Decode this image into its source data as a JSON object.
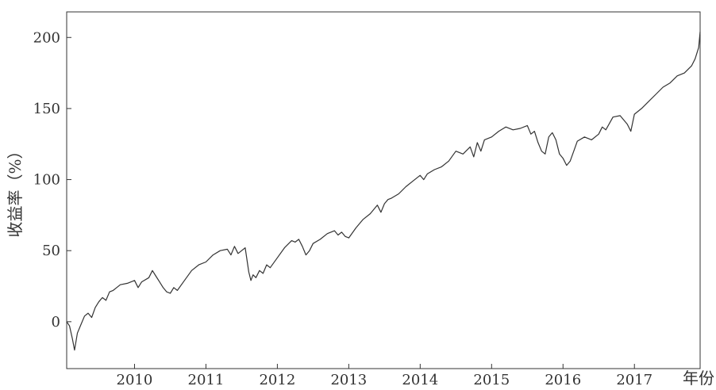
{
  "chart_data": {
    "type": "line",
    "title": "",
    "xlabel": "年份",
    "ylabel": "收益率（%）",
    "x_ticks": [
      "2010",
      "2011",
      "2012",
      "2013",
      "2014",
      "2015",
      "2016",
      "2017"
    ],
    "y_ticks": [
      "0",
      "50",
      "100",
      "150",
      "200"
    ],
    "xlim": [
      2009.05,
      2017.92
    ],
    "ylim": [
      -33,
      218
    ],
    "grid": false,
    "legend": "none",
    "series": [
      {
        "color": "#333333",
        "x": [
          2009.05,
          2009.09,
          2009.13,
          2009.16,
          2009.2,
          2009.25,
          2009.3,
          2009.35,
          2009.4,
          2009.45,
          2009.5,
          2009.55,
          2009.6,
          2009.65,
          2009.7,
          2009.75,
          2009.8,
          2009.9,
          2010.0,
          2010.05,
          2010.1,
          2010.2,
          2010.25,
          2010.3,
          2010.35,
          2010.4,
          2010.45,
          2010.5,
          2010.55,
          2010.6,
          2010.7,
          2010.8,
          2010.9,
          2011.0,
          2011.1,
          2011.2,
          2011.3,
          2011.35,
          2011.4,
          2011.45,
          2011.5,
          2011.55,
          2011.6,
          2011.63,
          2011.66,
          2011.7,
          2011.75,
          2011.8,
          2011.85,
          2011.9,
          2012.0,
          2012.1,
          2012.2,
          2012.25,
          2012.3,
          2012.35,
          2012.4,
          2012.45,
          2012.5,
          2012.6,
          2012.7,
          2012.8,
          2012.85,
          2012.9,
          2012.95,
          2013.0,
          2013.1,
          2013.2,
          2013.3,
          2013.4,
          2013.45,
          2013.5,
          2013.55,
          2013.6,
          2013.7,
          2013.8,
          2013.9,
          2014.0,
          2014.05,
          2014.1,
          2014.2,
          2014.3,
          2014.4,
          2014.5,
          2014.6,
          2014.7,
          2014.75,
          2014.8,
          2014.85,
          2014.9,
          2015.0,
          2015.1,
          2015.2,
          2015.3,
          2015.4,
          2015.5,
          2015.55,
          2015.6,
          2015.65,
          2015.7,
          2015.75,
          2015.8,
          2015.85,
          2015.9,
          2015.95,
          2016.0,
          2016.05,
          2016.1,
          2016.15,
          2016.2,
          2016.3,
          2016.4,
          2016.5,
          2016.55,
          2016.6,
          2016.7,
          2016.8,
          2016.85,
          2016.9,
          2016.95,
          2017.0,
          2017.1,
          2017.2,
          2017.3,
          2017.4,
          2017.5,
          2017.6,
          2017.7,
          2017.8,
          2017.85,
          2017.9,
          2017.92
        ],
        "y": [
          0,
          -3,
          -12,
          -20,
          -8,
          -2,
          4,
          6,
          3,
          10,
          14,
          17,
          15,
          21,
          22,
          24,
          26,
          27,
          29,
          24,
          28,
          31,
          36,
          32,
          28,
          24,
          21,
          20,
          24,
          22,
          29,
          36,
          40,
          42,
          47,
          50,
          51,
          47,
          53,
          48,
          50,
          52,
          35,
          29,
          33,
          31,
          36,
          34,
          40,
          38,
          45,
          52,
          57,
          56,
          58,
          53,
          47,
          50,
          55,
          58,
          62,
          64,
          61,
          63,
          60,
          59,
          66,
          72,
          76,
          82,
          77,
          83,
          86,
          87,
          90,
          95,
          99,
          103,
          100,
          104,
          107,
          109,
          113,
          120,
          118,
          123,
          116,
          126,
          120,
          128,
          130,
          134,
          137,
          135,
          136,
          138,
          132,
          134,
          126,
          120,
          118,
          130,
          133,
          128,
          118,
          115,
          110,
          113,
          120,
          127,
          130,
          128,
          132,
          137,
          135,
          144,
          145,
          142,
          139,
          134,
          146,
          150,
          155,
          160,
          165,
          168,
          173,
          175,
          180,
          185,
          193,
          204
        ]
      }
    ]
  }
}
